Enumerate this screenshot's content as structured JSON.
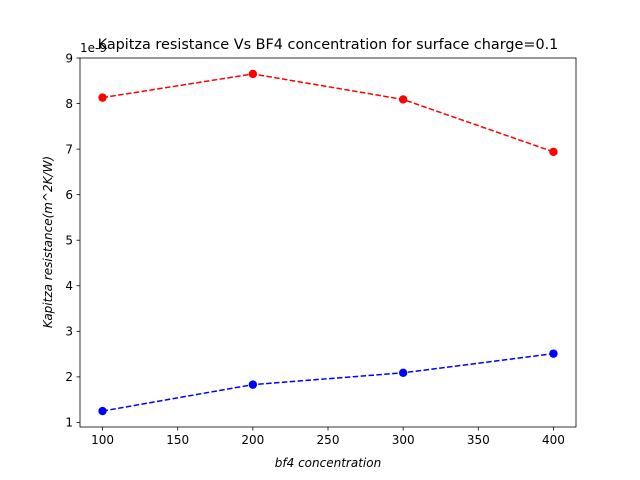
{
  "chart_data": {
    "type": "line",
    "title": "Kapitza resistance Vs BF4 concentration for surface charge=0.1",
    "xlabel": "bf4 concentration",
    "ylabel": "Kapitza resistance(m^2K/W)",
    "y_offset_label": "1e-9",
    "xlim": [
      85,
      415
    ],
    "ylim": [
      0.9,
      9.0
    ],
    "xticks": [
      100,
      150,
      200,
      250,
      300,
      350,
      400
    ],
    "yticks": [
      1,
      2,
      3,
      4,
      5,
      6,
      7,
      8,
      9
    ],
    "grid": false,
    "x": [
      100,
      200,
      300,
      400
    ],
    "series": [
      {
        "values": [
          8.13,
          8.65,
          8.09,
          6.94
        ],
        "color": "#ff0000",
        "line_style": "dashed",
        "marker": "circle"
      },
      {
        "values": [
          1.25,
          1.83,
          2.09,
          2.51
        ],
        "color": "#0000ff",
        "line_style": "dashed",
        "marker": "circle"
      }
    ]
  }
}
